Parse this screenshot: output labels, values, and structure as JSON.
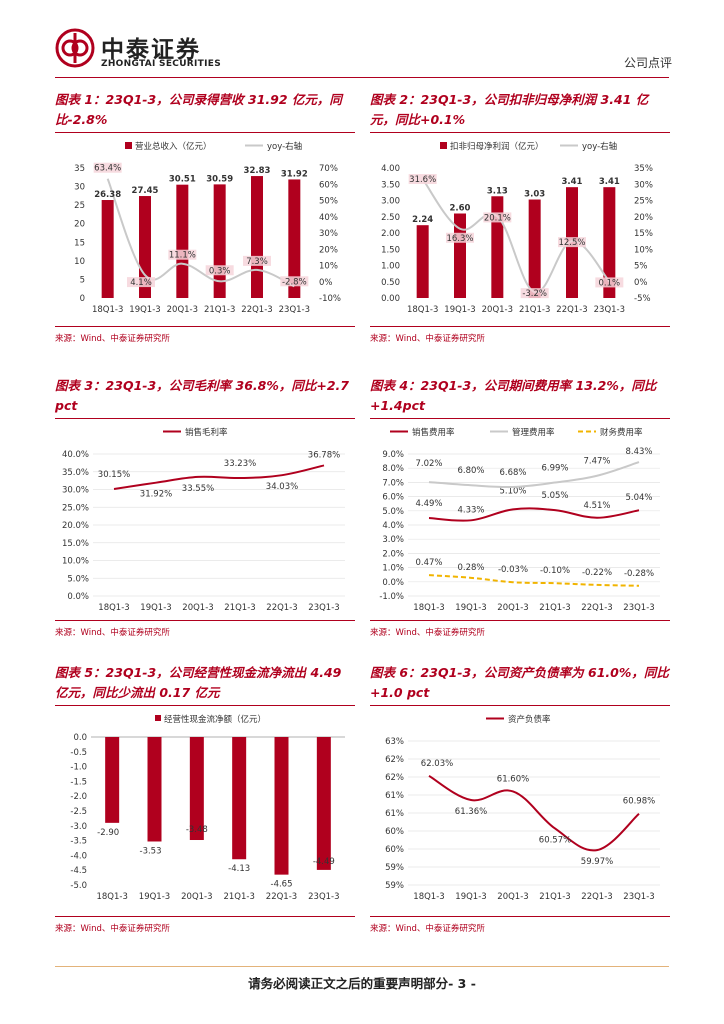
{
  "header": {
    "company_cn": "中泰证券",
    "company_en": "ZHONGTAI SECURITIES",
    "doc_type": "公司点评",
    "brand_color": "#b0001e"
  },
  "categories": [
    "18Q1-3",
    "19Q1-3",
    "20Q1-3",
    "21Q1-3",
    "22Q1-3",
    "23Q1-3"
  ],
  "source": "来源：Wind、中泰证券研究所",
  "charts": [
    {
      "title": "图表 1：23Q1-3，公司录得营收 31.92 亿元，同比-2.8%",
      "chart_data": {
        "type": "bar",
        "legend": [
          "营业总收入（亿元）",
          "yoy-右轴"
        ],
        "categories": [
          "18Q1-3",
          "19Q1-3",
          "20Q1-3",
          "21Q1-3",
          "22Q1-3",
          "23Q1-3"
        ],
        "series": [
          {
            "name": "营业总收入（亿元）",
            "type": "bar",
            "values": [
              26.38,
              27.45,
              30.51,
              30.59,
              32.83,
              31.92
            ],
            "labels": [
              "26.38",
              "27.45",
              "30.51",
              "30.59",
              "32.83",
              "31.92"
            ]
          },
          {
            "name": "yoy-右轴",
            "type": "line",
            "values": [
              63.4,
              4.1,
              11.1,
              0.3,
              7.3,
              -2.8
            ],
            "labels": [
              "63.4%",
              "4.1%",
              "11.1%",
              "0.3%",
              "7.3%",
              "-2.8%"
            ]
          }
        ],
        "ylim": [
          0,
          35
        ],
        "yticks": [
          "0",
          "5",
          "10",
          "15",
          "20",
          "25",
          "30",
          "35"
        ],
        "y2lim": [
          -10,
          70
        ],
        "y2ticks": [
          "-10%",
          "0%",
          "10%",
          "20%",
          "30%",
          "40%",
          "50%",
          "60%",
          "70%"
        ]
      }
    },
    {
      "title": "图表 2：23Q1-3，公司扣非归母净利润 3.41 亿元，同比+0.1%",
      "chart_data": {
        "type": "bar",
        "legend": [
          "扣非归母净利润（亿元）",
          "yoy-右轴"
        ],
        "categories": [
          "18Q1-3",
          "19Q1-3",
          "20Q1-3",
          "21Q1-3",
          "22Q1-3",
          "23Q1-3"
        ],
        "series": [
          {
            "name": "扣非归母净利润（亿元）",
            "type": "bar",
            "values": [
              2.24,
              2.6,
              3.13,
              3.03,
              3.41,
              3.41
            ],
            "labels": [
              "2.24",
              "2.60",
              "3.13",
              "3.03",
              "3.41",
              "3.41"
            ]
          },
          {
            "name": "yoy-右轴",
            "type": "line",
            "values": [
              31.6,
              16.3,
              20.1,
              -3.2,
              12.5,
              0.1
            ],
            "labels": [
              "31.6%",
              "16.3%",
              "20.1%",
              "-3.2%",
              "12.5%",
              "0.1%"
            ]
          }
        ],
        "ylim": [
          0,
          4
        ],
        "yticks": [
          "0.00",
          "0.50",
          "1.00",
          "1.50",
          "2.00",
          "2.50",
          "3.00",
          "3.50",
          "4.00"
        ],
        "y2lim": [
          -5,
          35
        ],
        "y2ticks": [
          "-5%",
          "0%",
          "5%",
          "10%",
          "15%",
          "20%",
          "25%",
          "30%",
          "35%"
        ]
      }
    },
    {
      "title": "图表 3：23Q1-3，公司毛利率 36.8%，同比+2.7 pct",
      "chart_data": {
        "type": "line",
        "legend": [
          "销售毛利率"
        ],
        "categories": [
          "18Q1-3",
          "19Q1-3",
          "20Q1-3",
          "21Q1-3",
          "22Q1-3",
          "23Q1-3"
        ],
        "series": [
          {
            "name": "销售毛利率",
            "values": [
              30.15,
              31.92,
              33.55,
              33.23,
              34.03,
              36.78
            ],
            "labels": [
              "30.15%",
              "31.92%",
              "33.55%",
              "33.23%",
              "34.03%",
              "36.78%"
            ]
          }
        ],
        "ylim": [
          0,
          40
        ],
        "yticks": [
          "0.0%",
          "5.0%",
          "10.0%",
          "15.0%",
          "20.0%",
          "25.0%",
          "30.0%",
          "35.0%",
          "40.0%"
        ]
      }
    },
    {
      "title": "图表 4：23Q1-3，公司期间费用率 13.2%，同比+1.4pct",
      "chart_data": {
        "type": "line",
        "legend": [
          "销售费用率",
          "管理费用率",
          "财务费用率"
        ],
        "categories": [
          "18Q1-3",
          "19Q1-3",
          "20Q1-3",
          "21Q1-3",
          "22Q1-3",
          "23Q1-3"
        ],
        "series": [
          {
            "name": "销售费用率",
            "values": [
              4.49,
              4.33,
              5.1,
              5.05,
              4.51,
              5.04
            ],
            "labels": [
              "4.49%",
              "4.33%",
              "5.10%",
              "5.05%",
              "4.51%",
              "5.04%"
            ]
          },
          {
            "name": "管理费用率",
            "values": [
              7.02,
              6.8,
              6.68,
              6.99,
              7.47,
              8.43
            ],
            "labels": [
              "7.02%",
              "6.80%",
              "6.68%",
              "6.99%",
              "7.47%",
              "8.43%"
            ]
          },
          {
            "name": "财务费用率",
            "values": [
              0.47,
              0.28,
              -0.03,
              -0.1,
              -0.22,
              -0.28
            ],
            "labels": [
              "0.47%",
              "0.28%",
              "-0.03%",
              "-0.10%",
              "-0.22%",
              "-0.28%"
            ]
          }
        ],
        "ylim": [
          -1,
          9
        ],
        "yticks": [
          "-1.0%",
          "0.0%",
          "1.0%",
          "2.0%",
          "3.0%",
          "4.0%",
          "5.0%",
          "6.0%",
          "7.0%",
          "8.0%",
          "9.0%"
        ]
      }
    },
    {
      "title": "图表 5：23Q1-3，公司经营性现金流净流出 4.49 亿元，同比少流出 0.17 亿元",
      "chart_data": {
        "type": "bar",
        "legend": [
          "经营性现金流净额（亿元）"
        ],
        "categories": [
          "18Q1-3",
          "19Q1-3",
          "20Q1-3",
          "21Q1-3",
          "22Q1-3",
          "23Q1-3"
        ],
        "series": [
          {
            "name": "经营性现金流净额（亿元）",
            "values": [
              -2.9,
              -3.53,
              -3.48,
              -4.13,
              -4.65,
              -4.49
            ],
            "labels": [
              "-2.90",
              "-3.53",
              "-3.48",
              "-4.13",
              "-4.65",
              "-4.49"
            ]
          }
        ],
        "ylim": [
          -5,
          0
        ],
        "yticks": [
          "-5.0",
          "-4.5",
          "-4.0",
          "-3.5",
          "-3.0",
          "-2.5",
          "-2.0",
          "-1.5",
          "-1.0",
          "-0.5",
          "0.0"
        ]
      }
    },
    {
      "title": "图表 6：23Q1-3，公司资产负债率为 61.0%，同比+1.0 pct",
      "chart_data": {
        "type": "line",
        "legend": [
          "资产负债率"
        ],
        "categories": [
          "18Q1-3",
          "19Q1-3",
          "20Q1-3",
          "21Q1-3",
          "22Q1-3",
          "23Q1-3"
        ],
        "series": [
          {
            "name": "资产负债率",
            "values": [
              62.03,
              61.36,
              61.6,
              60.57,
              59.97,
              60.98
            ],
            "labels": [
              "62.03%",
              "61.36%",
              "61.60%",
              "60.57%",
              "59.97%",
              "60.98%"
            ]
          }
        ],
        "ylim": [
          59,
          63
        ],
        "yticks": [
          "59%",
          "59%",
          "60%",
          "60%",
          "61%",
          "61%",
          "62%",
          "62%",
          "63%"
        ]
      }
    }
  ],
  "footer": {
    "text": "请务必阅读正文之后的重要声明部分",
    "page": "- 3 -"
  }
}
